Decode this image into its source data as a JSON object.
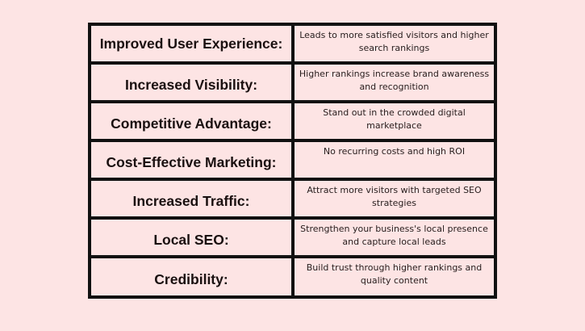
{
  "rows": [
    {
      "label": "Improved User Experience:",
      "description": "Leads to more satisfied visitors and higher search rankings"
    },
    {
      "label": "Increased Visibility:",
      "description": "Higher rankings increase brand awareness and recognition"
    },
    {
      "label": "Competitive Advantage:",
      "description": "Stand out in the crowded digital marketplace"
    },
    {
      "label": "Cost-Effective Marketing:",
      "description": "No recurring costs and high ROI"
    },
    {
      "label": "Increased Traffic:",
      "description": "Attract more visitors with targeted SEO strategies"
    },
    {
      "label": "Local SEO:",
      "description": "Strengthen your business's local presence and capture local leads"
    },
    {
      "label": "Credibility:",
      "description": "Build trust through higher rankings and quality content"
    }
  ],
  "colors": {
    "background": "#fde4e4",
    "border": "#111111"
  }
}
